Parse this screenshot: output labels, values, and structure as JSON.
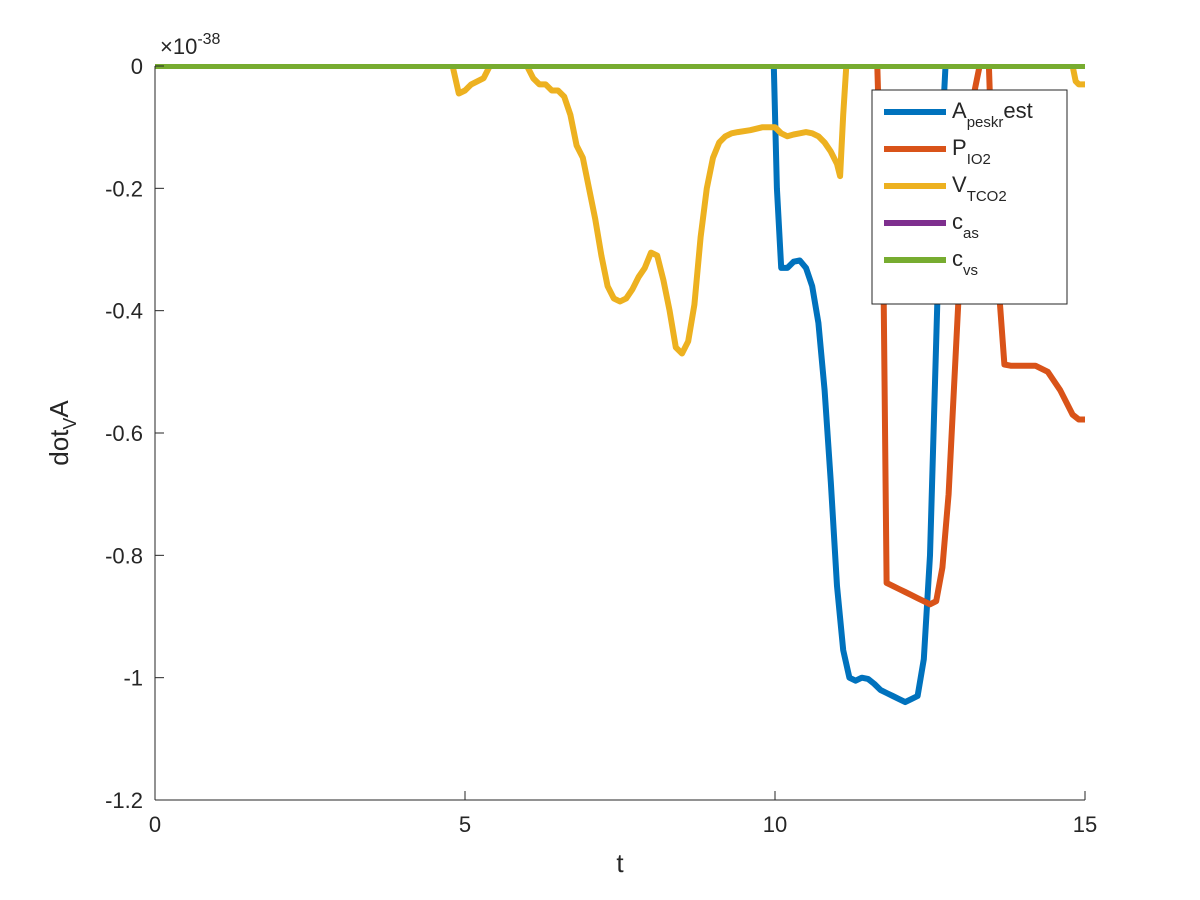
{
  "chart_data": {
    "type": "line",
    "xlabel": "t",
    "ylabel": "dot",
    "ylabel_sub": "V",
    "ylabel_tail": "A",
    "xlim": [
      0,
      15
    ],
    "ylim": [
      -1.2,
      0
    ],
    "x_ticks": [
      0,
      5,
      10,
      15
    ],
    "x_tick_labels": [
      "0",
      "5",
      "10",
      "15"
    ],
    "y_ticks": [
      0,
      -0.2,
      -0.4,
      -0.6,
      -0.8,
      -1,
      -1.2
    ],
    "y_tick_labels": [
      "0",
      "-0.2",
      "-0.4",
      "-0.6",
      "-0.8",
      "-1",
      "-1.2"
    ],
    "y_exponent": {
      "base": "×10",
      "power": "-38"
    },
    "grid": false,
    "legend_position": "top-right",
    "series": [
      {
        "name": "A_peskr est",
        "legend": {
          "main": "A",
          "sub": "peskr",
          "tail": "est"
        },
        "color": "#0072BD",
        "x": [
          0,
          9.98,
          10.03,
          10.1,
          10.2,
          10.3,
          10.4,
          10.5,
          10.6,
          10.7,
          10.8,
          10.9,
          11,
          11.1,
          11.2,
          11.3,
          11.4,
          11.5,
          11.6,
          11.7,
          11.8,
          11.9,
          12,
          12.1,
          12.2,
          12.3,
          12.4,
          12.5,
          12.6,
          12.7,
          12.75,
          12.8,
          15
        ],
        "y": [
          0,
          0,
          -0.2,
          -0.33,
          -0.33,
          -0.32,
          -0.318,
          -0.33,
          -0.36,
          -0.42,
          -0.53,
          -0.68,
          -0.85,
          -0.955,
          -1.0,
          -1.005,
          -1.0,
          -1.002,
          -1.01,
          -1.02,
          -1.025,
          -1.03,
          -1.035,
          -1.04,
          -1.035,
          -1.03,
          -0.97,
          -0.8,
          -0.45,
          -0.1,
          0,
          0,
          0
        ]
      },
      {
        "name": "P_IO2",
        "legend": {
          "main": "P",
          "sub": "IO2",
          "tail": ""
        },
        "color": "#D95319",
        "x": [
          0,
          11.65,
          11.75,
          11.8,
          11.9,
          12.0,
          12.1,
          12.2,
          12.3,
          12.4,
          12.5,
          12.6,
          12.7,
          12.8,
          12.9,
          13.0,
          13.1,
          13.2,
          13.3,
          13.45,
          13.5,
          13.6,
          13.7,
          13.8,
          14.0,
          14.2,
          14.4,
          14.6,
          14.8,
          14.9,
          15
        ],
        "y": [
          0,
          0,
          -0.35,
          -0.845,
          -0.85,
          -0.855,
          -0.86,
          -0.865,
          -0.87,
          -0.875,
          -0.88,
          -0.875,
          -0.82,
          -0.7,
          -0.5,
          -0.3,
          -0.15,
          -0.05,
          0,
          0,
          -0.15,
          -0.35,
          -0.488,
          -0.49,
          -0.49,
          -0.49,
          -0.5,
          -0.53,
          -0.57,
          -0.578,
          -0.578
        ]
      },
      {
        "name": "V_TCO2",
        "legend": {
          "main": "V",
          "sub": "TCO2",
          "tail": ""
        },
        "color": "#EDB120",
        "x": [
          0,
          4.8,
          4.9,
          5.0,
          5.1,
          5.2,
          5.3,
          5.4,
          6.0,
          6.1,
          6.2,
          6.3,
          6.4,
          6.5,
          6.6,
          6.7,
          6.8,
          6.9,
          7.0,
          7.1,
          7.2,
          7.3,
          7.4,
          7.5,
          7.6,
          7.7,
          7.8,
          7.9,
          8.0,
          8.1,
          8.2,
          8.3,
          8.4,
          8.5,
          8.6,
          8.7,
          8.8,
          8.9,
          9.0,
          9.1,
          9.2,
          9.3,
          9.4,
          9.6,
          9.8,
          10.0,
          10.1,
          10.2,
          10.3,
          10.4,
          10.5,
          10.6,
          10.7,
          10.8,
          10.9,
          11.0,
          11.05,
          11.1,
          11.15,
          14.8,
          14.85,
          14.9,
          15
        ],
        "y": [
          0,
          0,
          -0.045,
          -0.04,
          -0.03,
          -0.025,
          -0.02,
          0,
          0,
          -0.02,
          -0.03,
          -0.03,
          -0.04,
          -0.04,
          -0.05,
          -0.08,
          -0.13,
          -0.15,
          -0.2,
          -0.25,
          -0.31,
          -0.36,
          -0.38,
          -0.385,
          -0.38,
          -0.365,
          -0.345,
          -0.33,
          -0.305,
          -0.31,
          -0.35,
          -0.4,
          -0.46,
          -0.47,
          -0.45,
          -0.39,
          -0.28,
          -0.2,
          -0.15,
          -0.125,
          -0.115,
          -0.11,
          -0.108,
          -0.105,
          -0.1,
          -0.1,
          -0.11,
          -0.115,
          -0.112,
          -0.11,
          -0.108,
          -0.11,
          -0.115,
          -0.125,
          -0.14,
          -0.16,
          -0.18,
          -0.08,
          0,
          0,
          -0.025,
          -0.03,
          -0.03
        ]
      },
      {
        "name": "c_as",
        "legend": {
          "main": "c",
          "sub": "as",
          "tail": ""
        },
        "color": "#7E2F8E",
        "x": [
          0,
          15
        ],
        "y": [
          0,
          0
        ]
      },
      {
        "name": "c_vs",
        "legend": {
          "main": "c",
          "sub": "vs",
          "tail": ""
        },
        "color": "#77AC30",
        "x": [
          0,
          15
        ],
        "y": [
          0,
          0
        ]
      }
    ]
  }
}
